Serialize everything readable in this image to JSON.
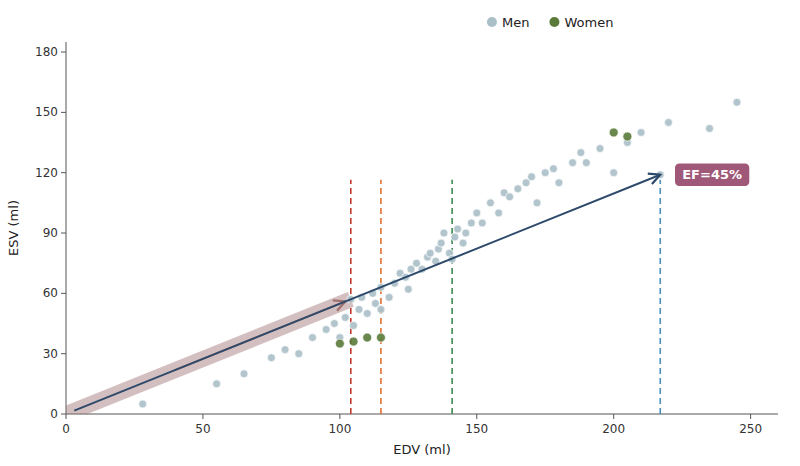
{
  "chart_data": {
    "type": "scatter",
    "xlabel": "EDV (ml)",
    "ylabel": "ESV (ml)",
    "xlim": [
      0,
      260
    ],
    "ylim": [
      0,
      185
    ],
    "xticks": [
      0,
      50,
      100,
      150,
      200,
      250
    ],
    "yticks": [
      0,
      30,
      60,
      90,
      120,
      150,
      180
    ],
    "legend": "top",
    "series": [
      {
        "name": "Men",
        "color": "#aabfc8",
        "marker": "circle",
        "x": [
          28,
          55,
          65,
          75,
          80,
          85,
          90,
          95,
          98,
          100,
          102,
          104,
          105,
          107,
          108,
          110,
          112,
          113,
          115,
          115,
          118,
          120,
          122,
          124,
          125,
          126,
          128,
          130,
          132,
          133,
          135,
          136,
          137,
          138,
          140,
          141,
          142,
          143,
          145,
          146,
          148,
          150,
          152,
          155,
          158,
          160,
          162,
          165,
          168,
          170,
          172,
          175,
          178,
          180,
          185,
          188,
          190,
          195,
          200,
          205,
          210,
          217,
          220,
          235,
          245
        ],
        "values": [
          5,
          15,
          20,
          28,
          32,
          30,
          38,
          42,
          45,
          38,
          48,
          57,
          44,
          52,
          58,
          50,
          60,
          55,
          63,
          52,
          58,
          65,
          70,
          68,
          62,
          72,
          75,
          72,
          78,
          80,
          76,
          82,
          85,
          90,
          80,
          77,
          88,
          92,
          85,
          90,
          95,
          100,
          95,
          105,
          100,
          110,
          108,
          112,
          115,
          118,
          105,
          120,
          122,
          115,
          125,
          130,
          125,
          132,
          120,
          135,
          140,
          119,
          145,
          142,
          155
        ]
      },
      {
        "name": "Women",
        "color": "#5a7a3a",
        "marker": "circle",
        "x": [
          100,
          105,
          110,
          115,
          200,
          205
        ],
        "values": [
          35,
          36,
          38,
          38,
          140,
          138
        ]
      }
    ],
    "vlines": [
      {
        "x": 104,
        "y": [
          0,
          116.55
        ],
        "color": "#c0392b",
        "line_style": "dashed"
      },
      {
        "x": 115,
        "y": [
          0,
          116.55
        ],
        "color": "#e07030",
        "line_style": "dashed"
      },
      {
        "x": 141,
        "y": [
          0,
          116.55
        ],
        "color": "#3a8a50",
        "line_style": "dashed"
      },
      {
        "x": 217,
        "y": [
          0,
          116.55
        ],
        "color": "#4a90b8",
        "line_style": "dashed"
      }
    ],
    "band": {
      "x": [
        0,
        104
      ],
      "y": [
        0,
        57
      ],
      "color": "#9e7070"
    },
    "arrows": [
      {
        "x": [
          39.52,
          102
        ],
        "y": [
          21.66,
          56
        ],
        "color": "#9e7070"
      },
      {
        "x": [
          3,
          217
        ],
        "y": [
          1.65,
          119
        ],
        "color": "#2e4a6b",
        "label": "EF=45%",
        "label_color": "#a05878"
      }
    ]
  }
}
